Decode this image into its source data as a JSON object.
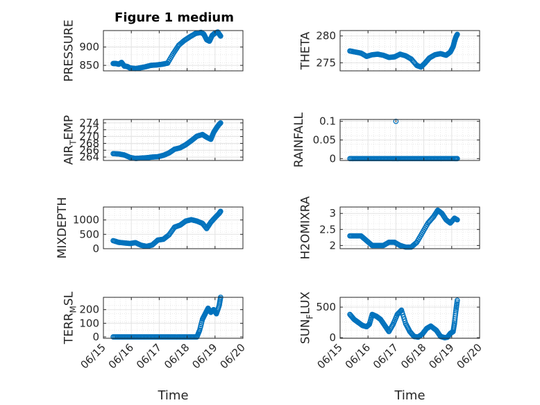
{
  "figure": {
    "title": "Figure 1 medium",
    "marker_color": "#0072BD",
    "grid": true,
    "grid_minor": true
  },
  "x_axis": {
    "label": "Time",
    "range": [
      0,
      5
    ],
    "ticks": [
      0,
      1,
      2,
      3,
      4,
      5
    ],
    "tick_labels": [
      "06/15",
      "06/16",
      "06/17",
      "06/18",
      "06/19",
      "06/20"
    ]
  },
  "chart_data": [
    {
      "type": "scatter",
      "ylabel": "PRESSURE",
      "ylabel_sub": "",
      "ylabel_after": "",
      "ylim": [
        835,
        945
      ],
      "yticks": [
        850,
        900
      ],
      "ytick_labels": [
        "850",
        "900"
      ],
      "x": [
        0.35,
        0.45,
        0.55,
        0.65,
        0.75,
        0.85,
        0.95,
        1.05,
        1.15,
        1.3,
        1.5,
        1.7,
        1.9,
        2.1,
        2.3,
        2.5,
        2.7,
        2.9,
        3.1,
        3.3,
        3.5,
        3.6,
        3.7,
        3.8,
        3.9,
        4.0,
        4.1,
        4.2
      ],
      "y": [
        855,
        855,
        853,
        858,
        848,
        847,
        843,
        842,
        841,
        843,
        846,
        850,
        851,
        853,
        856,
        882,
        905,
        918,
        928,
        937,
        940,
        935,
        920,
        916,
        932,
        938,
        941,
        930
      ]
    },
    {
      "type": "scatter",
      "ylabel": "THETA",
      "ylabel_sub": "",
      "ylabel_after": "",
      "ylim": [
        273.5,
        281
      ],
      "yticks": [
        275,
        280
      ],
      "ytick_labels": [
        "275",
        "280"
      ],
      "x": [
        0.35,
        0.55,
        0.75,
        0.95,
        1.15,
        1.35,
        1.55,
        1.75,
        1.95,
        2.15,
        2.35,
        2.55,
        2.75,
        2.9,
        3.05,
        3.2,
        3.4,
        3.6,
        3.8,
        3.95,
        4.05,
        4.1,
        4.15,
        4.2
      ],
      "y": [
        277.2,
        277.0,
        276.8,
        276.2,
        276.5,
        276.6,
        276.4,
        276.0,
        276.1,
        276.6,
        276.3,
        275.7,
        274.5,
        274.2,
        275.0,
        275.9,
        276.5,
        276.7,
        276.4,
        277.0,
        278.0,
        279.0,
        279.8,
        280.3
      ]
    },
    {
      "type": "scatter",
      "ylabel": "AIR",
      "ylabel_sub": "T",
      "ylabel_after": "EMP",
      "ylim": [
        263,
        275
      ],
      "yticks": [
        264,
        266,
        268,
        270,
        272,
        274
      ],
      "ytick_labels": [
        "264",
        "266",
        "268",
        "270",
        "272",
        "274"
      ],
      "x": [
        0.35,
        0.55,
        0.75,
        0.95,
        1.15,
        1.35,
        1.55,
        1.75,
        1.95,
        2.15,
        2.35,
        2.55,
        2.75,
        2.95,
        3.15,
        3.35,
        3.55,
        3.7,
        3.85,
        3.95,
        4.05,
        4.15,
        4.2
      ],
      "y": [
        265.0,
        264.9,
        264.6,
        263.9,
        263.6,
        263.7,
        263.8,
        264.0,
        264.1,
        264.5,
        265.2,
        266.3,
        266.7,
        267.6,
        268.8,
        270.1,
        270.6,
        269.8,
        269.2,
        271.2,
        272.5,
        273.6,
        274.0
      ]
    },
    {
      "type": "scatter",
      "ylabel": "RAINFALL",
      "ylabel_sub": "",
      "ylabel_after": "",
      "ylim": [
        -0.005,
        0.105
      ],
      "yticks": [
        0,
        0.05,
        0.1
      ],
      "ytick_labels": [
        "0",
        "0.05",
        "0.1"
      ],
      "x": [
        0.35,
        0.6,
        0.85,
        1.1,
        1.35,
        1.6,
        1.85,
        2.0,
        2.1,
        2.35,
        2.6,
        2.85,
        3.1,
        3.35,
        3.6,
        3.85,
        4.1,
        4.2
      ],
      "y": [
        0,
        0,
        0,
        0,
        0,
        0,
        0,
        0.1,
        0,
        0,
        0,
        0,
        0,
        0,
        0,
        0,
        0,
        0
      ]
    },
    {
      "type": "scatter",
      "ylabel": "MIXDEPTH",
      "ylabel_sub": "",
      "ylabel_after": "",
      "ylim": [
        0,
        1450
      ],
      "yticks": [
        0,
        500,
        1000
      ],
      "ytick_labels": [
        "0",
        "500",
        "1000"
      ],
      "x": [
        0.35,
        0.55,
        0.75,
        0.95,
        1.15,
        1.35,
        1.55,
        1.75,
        1.95,
        2.15,
        2.35,
        2.55,
        2.75,
        2.95,
        3.15,
        3.35,
        3.55,
        3.7,
        3.85,
        4.0,
        4.15,
        4.2
      ],
      "y": [
        280,
        220,
        200,
        180,
        210,
        120,
        80,
        130,
        300,
        330,
        480,
        750,
        820,
        960,
        1010,
        960,
        880,
        700,
        920,
        1080,
        1230,
        1300
      ]
    },
    {
      "type": "scatter",
      "ylabel": "H2OMIXRA",
      "ylabel_sub": "",
      "ylabel_after": "",
      "ylim": [
        1.9,
        3.2
      ],
      "yticks": [
        2,
        2.5,
        3
      ],
      "ytick_labels": [
        "2",
        "2.5",
        "3"
      ],
      "x": [
        0.35,
        0.55,
        0.75,
        0.95,
        1.15,
        1.35,
        1.55,
        1.75,
        1.95,
        2.15,
        2.35,
        2.55,
        2.75,
        2.95,
        3.15,
        3.35,
        3.5,
        3.65,
        3.8,
        3.95,
        4.1,
        4.2
      ],
      "y": [
        2.3,
        2.3,
        2.3,
        2.15,
        2.0,
        2.0,
        2.0,
        2.1,
        2.1,
        2.0,
        1.95,
        1.95,
        2.1,
        2.4,
        2.7,
        2.9,
        3.1,
        3.0,
        2.8,
        2.7,
        2.85,
        2.8
      ]
    },
    {
      "type": "scatter",
      "ylabel": "TERR",
      "ylabel_sub": "M",
      "ylabel_after": "SL",
      "ylim": [
        -10,
        290
      ],
      "yticks": [
        0,
        100,
        200
      ],
      "ytick_labels": [
        "0",
        "100",
        "200"
      ],
      "x": [
        0.35,
        0.6,
        0.85,
        1.1,
        1.35,
        1.6,
        1.85,
        2.1,
        2.35,
        2.6,
        2.85,
        3.1,
        3.35,
        3.45,
        3.55,
        3.65,
        3.75,
        3.85,
        3.95,
        4.05,
        4.15,
        4.2
      ],
      "y": [
        0,
        0,
        0,
        0,
        0,
        0,
        0,
        0,
        0,
        0,
        0,
        0,
        0,
        50,
        130,
        170,
        210,
        180,
        200,
        170,
        230,
        290
      ]
    },
    {
      "type": "scatter",
      "ylabel": "SUN",
      "ylabel_sub": "F",
      "ylabel_after": "LUX",
      "ylim": [
        -10,
        660
      ],
      "yticks": [
        0,
        500
      ],
      "ytick_labels": [
        "0",
        "500"
      ],
      "x": [
        0.35,
        0.5,
        0.65,
        0.8,
        0.95,
        1.05,
        1.15,
        1.3,
        1.45,
        1.6,
        1.75,
        1.9,
        2.05,
        2.2,
        2.35,
        2.5,
        2.65,
        2.8,
        2.95,
        3.1,
        3.25,
        3.45,
        3.6,
        3.75,
        3.85,
        3.95,
        4.05,
        4.1,
        4.15,
        4.2
      ],
      "y": [
        380,
        300,
        250,
        200,
        180,
        220,
        380,
        350,
        300,
        200,
        100,
        220,
        380,
        450,
        230,
        100,
        20,
        10,
        60,
        150,
        190,
        120,
        20,
        0,
        10,
        70,
        100,
        240,
        440,
        610
      ]
    }
  ]
}
